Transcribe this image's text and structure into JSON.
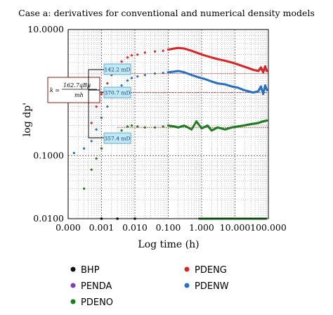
{
  "chart_data": {
    "type": "scatter",
    "title": "Case a: derivatives for conventional and numerical density models",
    "xlabel": "Log time (h)",
    "ylabel": "log dp'",
    "x_scale": "log",
    "y_scale": "log",
    "xlim": [
      0.0001,
      100
    ],
    "ylim": [
      0.01,
      10
    ],
    "x_tick_labels": [
      "0.000",
      "0.001",
      "0.010",
      "0.100",
      "1.000",
      "10.000",
      "100.000"
    ],
    "y_tick_labels": [
      "0.0100",
      "0.1000",
      "1.0",
      "10.0000"
    ],
    "grid": true,
    "legend_placement": "bottom",
    "legend": [
      {
        "name": "BHP",
        "color": "#111111"
      },
      {
        "name": "PDENG",
        "color": "#d62728"
      },
      {
        "name": "PENDA",
        "color": "#7b3fb5"
      },
      {
        "name": "PDENW",
        "color": "#2a6fbe"
      },
      {
        "name": "PDENO",
        "color": "#1e7a1e"
      }
    ],
    "permeability_labels": [
      "142.2 mD",
      "370.7 mD",
      "357.4 mD"
    ],
    "formula": {
      "lhs": "k =",
      "numerator": "162.7qBμ",
      "denominator": "mh"
    },
    "series": [
      {
        "name": "PDENG",
        "color": "#d62728",
        "points": [
          [
            0.0005,
            0.33
          ],
          [
            0.0007,
            0.6
          ],
          [
            0.001,
            0.95
          ],
          [
            0.0015,
            1.4
          ],
          [
            0.002,
            1.9
          ],
          [
            0.003,
            2.6
          ],
          [
            0.004,
            3.1
          ],
          [
            0.006,
            3.6
          ],
          [
            0.008,
            3.9
          ],
          [
            0.012,
            4.0
          ],
          [
            0.02,
            4.3
          ],
          [
            0.04,
            4.5
          ],
          [
            0.07,
            4.6
          ],
          [
            0.1,
            4.8
          ],
          [
            0.15,
            5.0
          ],
          [
            0.2,
            5.1
          ],
          [
            0.3,
            5.0
          ],
          [
            0.5,
            4.6
          ],
          [
            0.8,
            4.2
          ],
          [
            1.2,
            3.9
          ],
          [
            2,
            3.6
          ],
          [
            3,
            3.4
          ],
          [
            5,
            3.2
          ],
          [
            8,
            3.0
          ],
          [
            12,
            2.8
          ],
          [
            18,
            2.6
          ],
          [
            25,
            2.45
          ],
          [
            35,
            2.3
          ],
          [
            50,
            2.2
          ],
          [
            60,
            2.5
          ],
          [
            70,
            2.1
          ],
          [
            80,
            2.6
          ],
          [
            90,
            2.2
          ]
        ]
      },
      {
        "name": "PDENW",
        "color": "#2a6fbe",
        "points": [
          [
            0.00015,
            0.11
          ],
          [
            0.0003,
            0.13
          ],
          [
            0.0005,
            0.17
          ],
          [
            0.0007,
            0.26
          ],
          [
            0.001,
            0.4
          ],
          [
            0.0015,
            0.6
          ],
          [
            0.002,
            0.85
          ],
          [
            0.003,
            1.1
          ],
          [
            0.004,
            1.3
          ],
          [
            0.006,
            1.55
          ],
          [
            0.008,
            1.7
          ],
          [
            0.012,
            1.8
          ],
          [
            0.02,
            1.9
          ],
          [
            0.04,
            2.0
          ],
          [
            0.07,
            2.05
          ],
          [
            0.1,
            2.1
          ],
          [
            0.15,
            2.15
          ],
          [
            0.2,
            2.2
          ],
          [
            0.3,
            2.1
          ],
          [
            0.5,
            1.9
          ],
          [
            0.8,
            1.75
          ],
          [
            1.2,
            1.65
          ],
          [
            2,
            1.5
          ],
          [
            3,
            1.4
          ],
          [
            5,
            1.35
          ],
          [
            8,
            1.25
          ],
          [
            12,
            1.2
          ],
          [
            18,
            1.1
          ],
          [
            25,
            1.05
          ],
          [
            35,
            1.0
          ],
          [
            50,
            1.05
          ],
          [
            60,
            1.25
          ],
          [
            70,
            0.95
          ],
          [
            80,
            1.3
          ],
          [
            90,
            1.1
          ]
        ]
      },
      {
        "name": "PDENO",
        "color": "#1e7a1e",
        "points": [
          [
            0.0003,
            0.03
          ],
          [
            0.0005,
            0.06
          ],
          [
            0.0007,
            0.09
          ],
          [
            0.001,
            0.13
          ],
          [
            0.0015,
            0.17
          ],
          [
            0.002,
            0.21
          ],
          [
            0.003,
            0.22
          ],
          [
            0.004,
            0.25
          ],
          [
            0.006,
            0.29
          ],
          [
            0.008,
            0.3
          ],
          [
            0.012,
            0.29
          ],
          [
            0.02,
            0.28
          ],
          [
            0.04,
            0.28
          ],
          [
            0.07,
            0.29
          ],
          [
            0.1,
            0.3
          ],
          [
            0.15,
            0.29
          ],
          [
            0.2,
            0.28
          ],
          [
            0.3,
            0.3
          ],
          [
            0.5,
            0.26
          ],
          [
            0.7,
            0.35
          ],
          [
            1,
            0.27
          ],
          [
            1.5,
            0.3
          ],
          [
            2,
            0.25
          ],
          [
            3,
            0.28
          ],
          [
            5,
            0.26
          ],
          [
            8,
            0.28
          ],
          [
            12,
            0.29
          ],
          [
            18,
            0.3
          ],
          [
            25,
            0.31
          ],
          [
            35,
            0.32
          ],
          [
            50,
            0.33
          ],
          [
            70,
            0.35
          ],
          [
            90,
            0.36
          ]
        ]
      },
      {
        "name": "BHP",
        "color": "#111111",
        "points": [
          [
            0.001,
            0.01
          ],
          [
            0.003,
            0.01
          ],
          [
            0.01,
            0.01
          ]
        ]
      }
    ]
  }
}
